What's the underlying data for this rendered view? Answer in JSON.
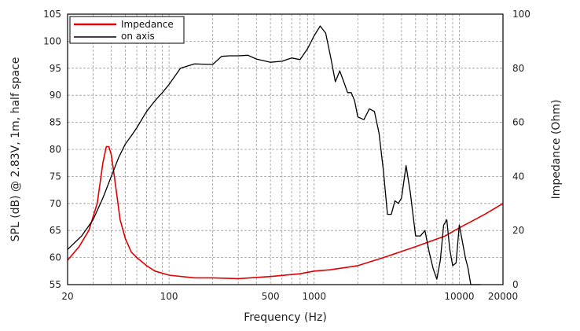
{
  "chart_data": {
    "type": "line",
    "xlabel": "Frequency (Hz)",
    "ylabel_left": "SPL (dB) @ 2.83V, 1m, half space",
    "ylabel_right": "Impedance (Ohm)",
    "x_scale": "log",
    "xlim": [
      20,
      20000
    ],
    "ylim_left": [
      55,
      105
    ],
    "ylim_right": [
      0,
      100
    ],
    "grid": true,
    "legend_position": "top-left",
    "x_tick_labels": [
      "20",
      "100",
      "500",
      "1000",
      "10000",
      "20000"
    ],
    "x_ticks": [
      20,
      100,
      500,
      1000,
      10000,
      20000
    ],
    "y_left_ticks": [
      55,
      60,
      65,
      70,
      75,
      80,
      85,
      90,
      95,
      100,
      105
    ],
    "y_right_ticks": [
      0,
      20,
      40,
      60,
      80,
      100
    ],
    "series": [
      {
        "name": "Impedance",
        "axis": "right",
        "color": "#e00000",
        "x": [
          20,
          24,
          28,
          32,
          35,
          37,
          38.5,
          40,
          42,
          44,
          46,
          50,
          55,
          60,
          70,
          80,
          100,
          150,
          200,
          300,
          500,
          800,
          1000,
          1300,
          2000,
          3000,
          5000,
          8000,
          10000,
          15000,
          20000
        ],
        "y": [
          9,
          14,
          20,
          30,
          45,
          51,
          51,
          48,
          40,
          32,
          24,
          17,
          12,
          10,
          7,
          5,
          3.5,
          2.5,
          2.5,
          2.2,
          3,
          4,
          5,
          5.5,
          7,
          10,
          14,
          18,
          21,
          26,
          30
        ]
      },
      {
        "name": "on axis",
        "axis": "left",
        "color": "#000000",
        "x": [
          20,
          25,
          30,
          35,
          40,
          45,
          50,
          55,
          60,
          70,
          80,
          90,
          100,
          120,
          150,
          200,
          230,
          260,
          300,
          350,
          400,
          450,
          500,
          600,
          700,
          800,
          900,
          1000,
          1100,
          1200,
          1300,
          1400,
          1500,
          1600,
          1700,
          1800,
          1900,
          2000,
          2200,
          2400,
          2600,
          2800,
          3000,
          3200,
          3400,
          3600,
          3800,
          4000,
          4300,
          4600,
          5000,
          5400,
          5800,
          6200,
          6600,
          7000,
          7400,
          7800,
          8200,
          8600,
          9000,
          9500,
          10000,
          10500,
          11000,
          11500,
          12000,
          13000,
          14000
        ],
        "y": [
          61.5,
          64,
          67,
          71,
          75,
          78.5,
          81,
          82.5,
          84,
          87,
          89,
          90.5,
          92,
          95,
          95.8,
          95.7,
          97.2,
          97.3,
          97.3,
          97.4,
          96.7,
          96.4,
          96.1,
          96.3,
          96.9,
          96.6,
          98.6,
          101,
          102.8,
          101.5,
          97,
          92.5,
          94.5,
          92.5,
          90.5,
          90.5,
          89,
          86,
          85.5,
          87.5,
          87,
          83,
          76,
          68,
          68,
          70.5,
          70,
          71,
          77,
          72,
          64,
          64,
          65,
          61,
          58,
          56,
          59.5,
          66,
          67,
          61.5,
          58.5,
          59,
          66,
          63,
          60,
          58,
          54.5,
          55,
          54
        ]
      }
    ]
  }
}
